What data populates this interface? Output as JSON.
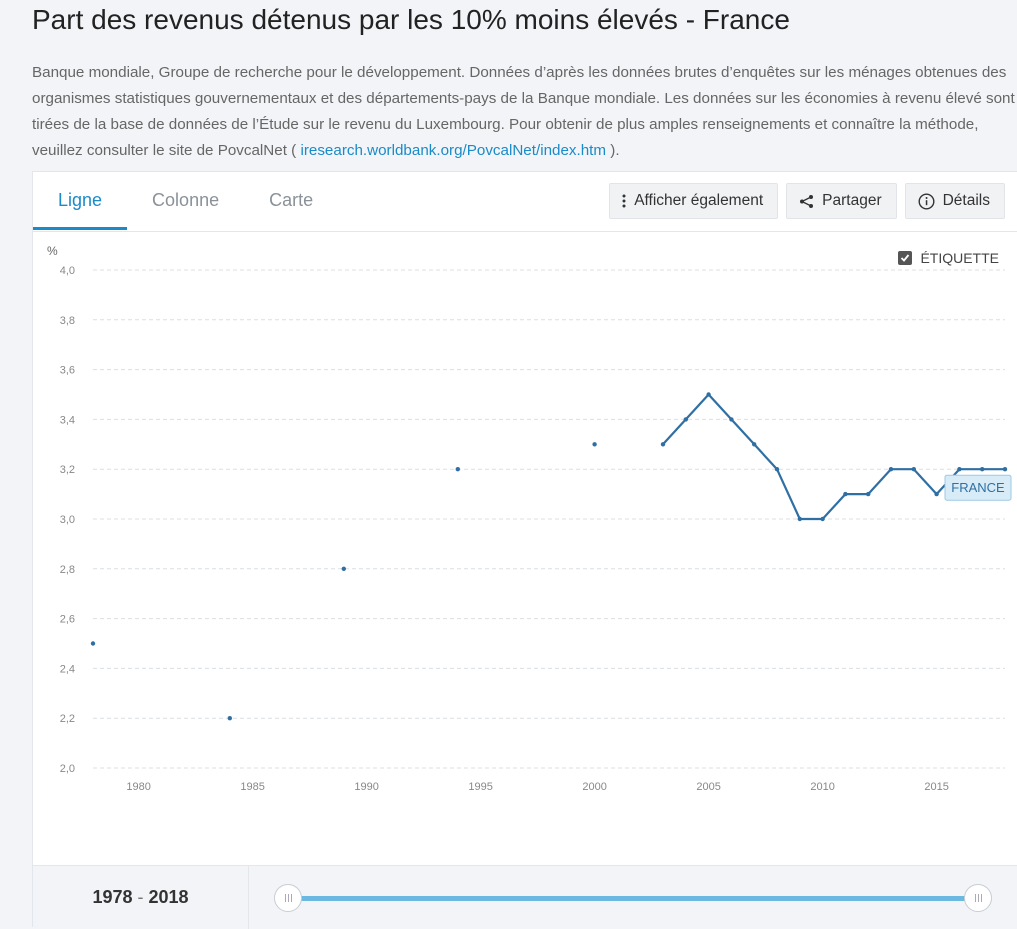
{
  "page": {
    "title": "Part des revenus détenus par les 10% moins élevés - France",
    "source_text": "Banque mondiale, Groupe de recherche pour le développement. Données d’après les données brutes d’enquêtes sur les ménages obtenues des organismes statistiques gouvernementaux et des départements-pays de la Banque mondiale. Les données sur les économies à revenu élevé sont tirées de la base de données de l’Étude sur le revenu du Luxembourg. Pour obtenir de plus amples renseignements et connaître la méthode, veuillez consulter le site de PovcalNet (",
    "source_link": "iresearch.worldbank.org/PovcalNet/index.htm",
    "source_end": ")."
  },
  "tabs": [
    "Ligne",
    "Colonne",
    "Carte"
  ],
  "actions": {
    "show_also": "Afficher également",
    "share": "Partager",
    "details": "Détails"
  },
  "legend_toggle": {
    "label": "ÉTIQUETTE",
    "checked": true
  },
  "range": {
    "start": "1978",
    "sep": "-",
    "end": "2018"
  },
  "colors": {
    "accent": "#1a8bc9",
    "series": "#2f6fa3",
    "slider": "#6bb8e0"
  },
  "chart_data": {
    "type": "line",
    "ylabel": "%",
    "ylim": [
      2.0,
      4.0
    ],
    "yticks": [
      "2,0",
      "2,2",
      "2,4",
      "2,6",
      "2,8",
      "3,0",
      "3,2",
      "3,4",
      "3,6",
      "3,8",
      "4,0"
    ],
    "xlim": [
      1978,
      2018
    ],
    "xticks": [
      "1980",
      "1985",
      "1990",
      "1995",
      "2000",
      "2005",
      "2010",
      "2015"
    ],
    "series": [
      {
        "name": "FRANCE",
        "points": [
          [
            1978,
            2.5
          ],
          [
            1984,
            2.2
          ],
          [
            1989,
            2.8
          ],
          [
            1994,
            3.2
          ],
          [
            2000,
            3.3
          ],
          [
            2003,
            3.3
          ],
          [
            2004,
            3.4
          ],
          [
            2005,
            3.5
          ],
          [
            2006,
            3.4
          ],
          [
            2007,
            3.3
          ],
          [
            2008,
            3.2
          ],
          [
            2009,
            3.0
          ],
          [
            2010,
            3.0
          ],
          [
            2011,
            3.1
          ],
          [
            2012,
            3.1
          ],
          [
            2013,
            3.2
          ],
          [
            2014,
            3.2
          ],
          [
            2015,
            3.1
          ],
          [
            2016,
            3.2
          ],
          [
            2017,
            3.2
          ],
          [
            2018,
            3.2
          ]
        ]
      }
    ]
  }
}
